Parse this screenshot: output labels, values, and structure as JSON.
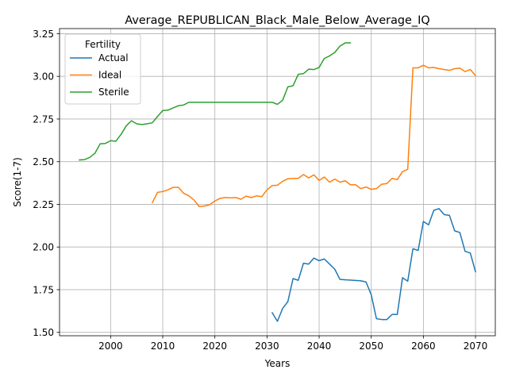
{
  "chart_data": {
    "type": "line",
    "title": "Average_REPUBLICAN_Black_Male_Below_Average_IQ",
    "xlabel": "Years",
    "ylabel": "Score(1-7)",
    "xlim": [
      1990.2,
      2073.8
    ],
    "ylim": [
      1.48,
      3.28
    ],
    "xticks": [
      2000,
      2010,
      2020,
      2030,
      2040,
      2050,
      2060,
      2070
    ],
    "yticks": [
      1.5,
      1.75,
      2.0,
      2.25,
      2.5,
      2.75,
      3.0,
      3.25
    ],
    "ytick_labels": [
      "1.50",
      "1.75",
      "2.00",
      "2.25",
      "2.50",
      "2.75",
      "3.00",
      "3.25"
    ],
    "grid": true,
    "legend": {
      "title": "Fertility",
      "position": "upper-left"
    },
    "series": [
      {
        "name": "Actual",
        "color": "#1f77b4",
        "x": [
          2031,
          2032,
          2033,
          2034,
          2035,
          2036,
          2037,
          2038,
          2039,
          2040,
          2041,
          2042,
          2043,
          2044,
          2045,
          2046,
          2047,
          2048,
          2049,
          2050,
          2051,
          2052,
          2053,
          2054,
          2055,
          2056,
          2057,
          2058,
          2059,
          2060,
          2061,
          2062,
          2063,
          2064,
          2065,
          2066,
          2067,
          2068,
          2069,
          2070
        ],
        "y": [
          1.615,
          1.565,
          1.64,
          1.68,
          1.815,
          1.805,
          1.905,
          1.9,
          1.935,
          1.92,
          1.93,
          1.9,
          1.87,
          1.81,
          1.808,
          1.806,
          1.804,
          1.802,
          1.795,
          1.72,
          1.58,
          1.575,
          1.575,
          1.605,
          1.605,
          1.82,
          1.8,
          1.99,
          1.98,
          2.15,
          2.13,
          2.215,
          2.225,
          2.19,
          2.185,
          2.095,
          2.085,
          1.975,
          1.965,
          1.855
        ]
      },
      {
        "name": "Ideal",
        "color": "#ff7f0e",
        "x": [
          2008,
          2009,
          2010,
          2011,
          2012,
          2013,
          2014,
          2015,
          2016,
          2017,
          2018,
          2019,
          2020,
          2021,
          2022,
          2023,
          2024,
          2025,
          2026,
          2027,
          2028,
          2029,
          2030,
          2031,
          2032,
          2033,
          2034,
          2035,
          2036,
          2037,
          2038,
          2039,
          2040,
          2041,
          2042,
          2043,
          2044,
          2045,
          2046,
          2047,
          2048,
          2049,
          2050,
          2051,
          2052,
          2053,
          2054,
          2055,
          2056,
          2057,
          2058,
          2059,
          2060,
          2061,
          2062,
          2063,
          2064,
          2065,
          2066,
          2067,
          2068,
          2069,
          2070
        ],
        "y": [
          2.26,
          2.32,
          2.325,
          2.335,
          2.35,
          2.35,
          2.315,
          2.3,
          2.275,
          2.237,
          2.24,
          2.248,
          2.27,
          2.285,
          2.29,
          2.288,
          2.29,
          2.28,
          2.298,
          2.29,
          2.3,
          2.295,
          2.335,
          2.36,
          2.362,
          2.385,
          2.4,
          2.402,
          2.402,
          2.425,
          2.405,
          2.423,
          2.39,
          2.41,
          2.38,
          2.398,
          2.38,
          2.388,
          2.365,
          2.365,
          2.342,
          2.352,
          2.338,
          2.342,
          2.368,
          2.372,
          2.402,
          2.395,
          2.442,
          2.455,
          3.05,
          3.05,
          3.065,
          3.05,
          3.052,
          3.045,
          3.04,
          3.035,
          3.045,
          3.048,
          3.028,
          3.04,
          3.005
        ]
      },
      {
        "name": "Sterile",
        "color": "#2ca02c",
        "x": [
          1994,
          1995,
          1996,
          1997,
          1998,
          1999,
          2000,
          2001,
          2002,
          2003,
          2004,
          2005,
          2006,
          2007,
          2008,
          2009,
          2010,
          2011,
          2012,
          2013,
          2014,
          2015,
          2016,
          2017,
          2018,
          2019,
          2020,
          2021,
          2022,
          2023,
          2024,
          2025,
          2026,
          2027,
          2028,
          2029,
          2030,
          2031,
          2032,
          2033,
          2034,
          2035,
          2036,
          2037,
          2038,
          2039,
          2040,
          2041,
          2042,
          2043,
          2044,
          2045,
          2046
        ],
        "y": [
          2.51,
          2.512,
          2.525,
          2.55,
          2.605,
          2.607,
          2.623,
          2.62,
          2.66,
          2.71,
          2.74,
          2.722,
          2.718,
          2.722,
          2.728,
          2.765,
          2.8,
          2.802,
          2.815,
          2.828,
          2.832,
          2.848,
          2.848,
          2.848,
          2.848,
          2.848,
          2.848,
          2.848,
          2.848,
          2.848,
          2.848,
          2.848,
          2.848,
          2.848,
          2.848,
          2.848,
          2.848,
          2.848,
          2.836,
          2.86,
          2.938,
          2.945,
          3.012,
          3.016,
          3.042,
          3.04,
          3.052,
          3.105,
          3.12,
          3.14,
          3.177,
          3.196,
          3.196
        ]
      }
    ]
  }
}
